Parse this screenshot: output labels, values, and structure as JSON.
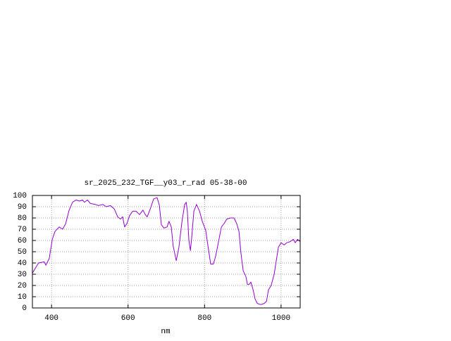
{
  "chart_data": {
    "type": "line",
    "title": "sr_2025_232_TGF__y03_r_rad 05-38-00",
    "xlabel": "nm",
    "color": "#9400d3",
    "grid": true,
    "xlim": [
      350,
      1050
    ],
    "ylim": [
      0,
      100
    ],
    "xticks": [
      400,
      600,
      800,
      1000
    ],
    "yticks": [
      0,
      10,
      20,
      30,
      40,
      50,
      60,
      70,
      80,
      90,
      100
    ],
    "x": [
      350,
      366,
      381,
      385,
      394,
      402,
      409,
      420,
      429,
      437,
      446,
      455,
      464,
      473,
      481,
      486,
      494,
      501,
      514,
      523,
      534,
      543,
      554,
      564,
      573,
      580,
      586,
      591,
      597,
      604,
      612,
      621,
      630,
      639,
      645,
      650,
      658,
      667,
      676,
      682,
      687,
      694,
      702,
      707,
      713,
      718,
      726,
      733,
      741,
      748,
      752,
      755,
      759,
      763,
      766,
      772,
      779,
      787,
      794,
      803,
      809,
      816,
      823,
      829,
      836,
      844,
      851,
      858,
      868,
      877,
      884,
      890,
      895,
      901,
      908,
      912,
      917,
      921,
      927,
      932,
      938,
      947,
      956,
      962,
      967,
      974,
      982,
      987,
      993,
      1000,
      1008,
      1015,
      1024,
      1032,
      1037,
      1043,
      1050
    ],
    "values": [
      31,
      40,
      41,
      38,
      44,
      61,
      68,
      72,
      70,
      75,
      87,
      94,
      96,
      95,
      96,
      94,
      96,
      93,
      92,
      91,
      92,
      90,
      91,
      88,
      81,
      79,
      81,
      72,
      75,
      82,
      86,
      86,
      83,
      87,
      83,
      81,
      88,
      97,
      98,
      91,
      74,
      71,
      72,
      77,
      72,
      55,
      42,
      54,
      77,
      92,
      94,
      86,
      60,
      51,
      61,
      86,
      92,
      86,
      77,
      69,
      55,
      39,
      39,
      46,
      58,
      72,
      75,
      79,
      80,
      80,
      75,
      68,
      49,
      33,
      28,
      21,
      21,
      23,
      16,
      8,
      4,
      3,
      4,
      6,
      16,
      20,
      30,
      41,
      54,
      58,
      56,
      58,
      59,
      61,
      58,
      61,
      59
    ]
  }
}
